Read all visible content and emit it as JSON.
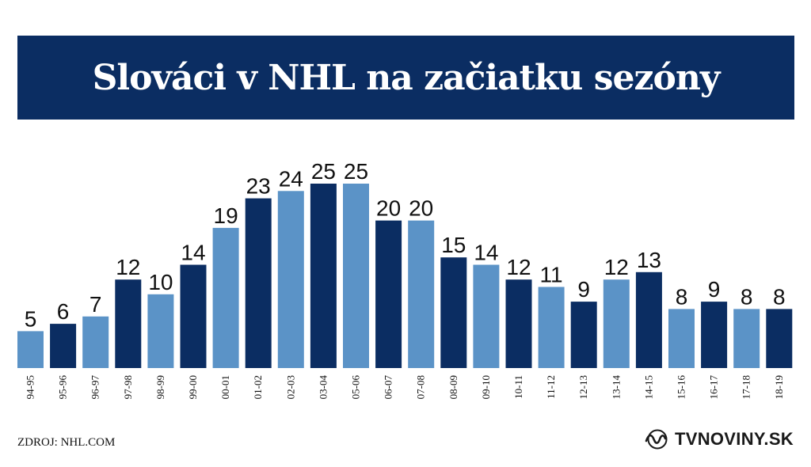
{
  "title": "Slováci v NHL na začiatku sezóny",
  "source": "ZDROJ: NHL.COM",
  "brand": {
    "name": "TVNOVINY.SK",
    "icon": "tvnoviny-logo-icon"
  },
  "colors": {
    "banner": "#0b2d62",
    "bar_light": "#5b93c7",
    "bar_dark": "#0b2d62",
    "text": "#111111"
  },
  "chart_data": {
    "type": "bar",
    "title": "Slováci v NHL na začiatku sezóny",
    "categories": [
      "94-95",
      "95-96",
      "96-97",
      "97-98",
      "98-99",
      "99-00",
      "00-01",
      "01-02",
      "02-03",
      "03-04",
      "05-06",
      "06-07",
      "07-08",
      "08-09",
      "09-10",
      "10-11",
      "11-12",
      "12-13",
      "13-14",
      "14-15",
      "15-16",
      "16-17",
      "17-18",
      "18-19"
    ],
    "values": [
      5,
      6,
      7,
      12,
      10,
      14,
      19,
      23,
      24,
      25,
      25,
      20,
      20,
      15,
      14,
      12,
      11,
      9,
      12,
      13,
      8,
      9,
      8,
      8
    ],
    "bar_colors": [
      "light",
      "dark",
      "light",
      "dark",
      "light",
      "dark",
      "light",
      "dark",
      "light",
      "dark",
      "light",
      "dark",
      "light",
      "dark",
      "light",
      "dark",
      "light",
      "dark",
      "light",
      "dark",
      "light",
      "dark",
      "light",
      "dark"
    ],
    "xlabel": "",
    "ylabel": "",
    "ylim": [
      0,
      25
    ],
    "grid": false,
    "legend": "none",
    "data_labels": true
  }
}
